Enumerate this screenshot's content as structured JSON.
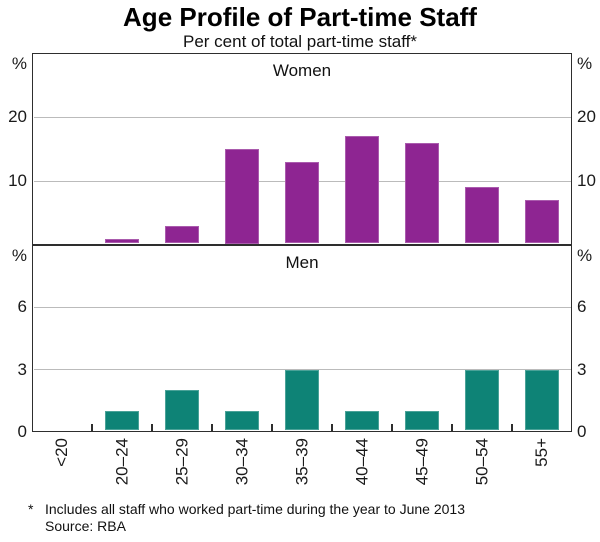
{
  "title": "Age Profile of Part-time Staff",
  "subtitle": "Per cent of total part-time staff*",
  "footnote": {
    "marker": "*",
    "text": "Includes all staff who worked part-time during the year to June 2013",
    "source": "Source: RBA"
  },
  "colors": {
    "women_bar": "#8e2592",
    "men_bar": "#0e8376",
    "frame": "#2e2e2e",
    "grid": "#bbbbbb",
    "text": "#1a1a1a"
  },
  "chart_data": {
    "type": "bar",
    "categories": [
      "<20",
      "20–24",
      "25–29",
      "30–34",
      "35–39",
      "40–44",
      "45–49",
      "50–54",
      "55+"
    ],
    "panels": [
      {
        "label": "Women",
        "unit_symbol": "%",
        "values": [
          0,
          1,
          3,
          15,
          13,
          17,
          16,
          9,
          7
        ],
        "ylim": [
          0,
          30
        ],
        "gridlines": [
          10,
          20
        ],
        "ytick_values": [
          20,
          10
        ],
        "ytick_labels": [
          "20",
          "10"
        ],
        "bar_color": "#8e2592"
      },
      {
        "label": "Men",
        "unit_symbol": "%",
        "values": [
          0,
          1,
          2,
          1,
          3,
          1,
          1,
          3,
          3
        ],
        "ylim": [
          0,
          9
        ],
        "gridlines": [
          3,
          6
        ],
        "ytick_values": [
          6,
          3,
          0
        ],
        "ytick_labels": [
          "6",
          "3",
          "0"
        ],
        "bar_color": "#0e8376"
      }
    ],
    "grid": true,
    "legend_position": "none"
  }
}
